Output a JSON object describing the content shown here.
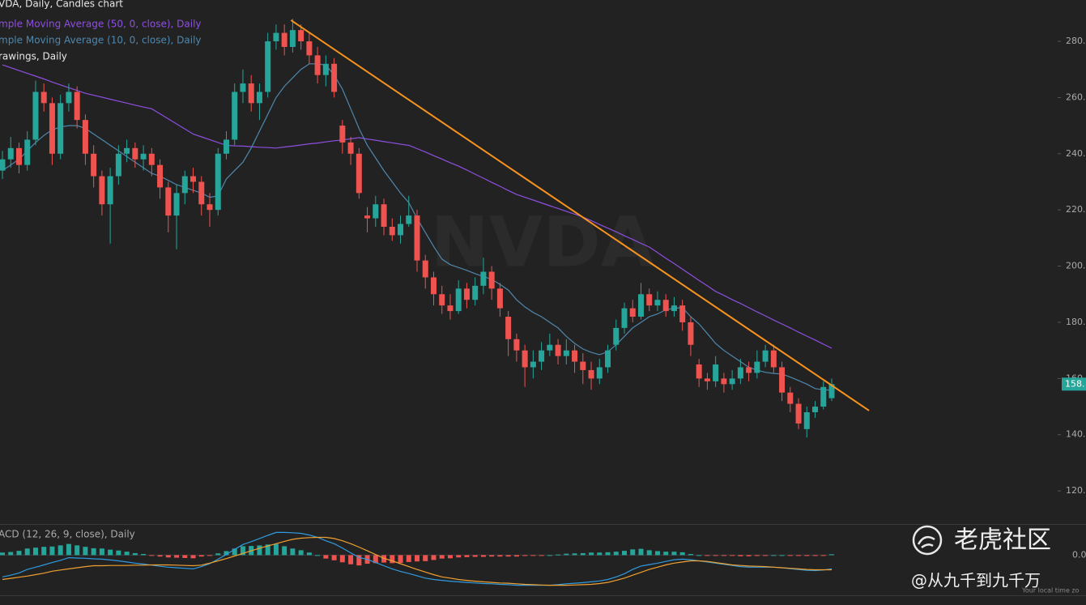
{
  "chart_data": [
    {
      "type": "candlestick",
      "title": "VDA, Daily, Candles chart",
      "watermark": "NVDA",
      "open": [
        234,
        238,
        242,
        236,
        245,
        262,
        258,
        240,
        258,
        262,
        252,
        240,
        232,
        222,
        232,
        240,
        242,
        238,
        240,
        236,
        228,
        218,
        226,
        232,
        230,
        222,
        220,
        240,
        245,
        262,
        265,
        258,
        262,
        280,
        283,
        278,
        284,
        280,
        275,
        268,
        272,
        250,
        244,
        240,
        218,
        217,
        222,
        214,
        211,
        215,
        218,
        202,
        196,
        190,
        186,
        184,
        192,
        188,
        193,
        198,
        192,
        182,
        174,
        170,
        164,
        166,
        170,
        172,
        168,
        170,
        166,
        163,
        160,
        164,
        172,
        178,
        185,
        182,
        190,
        186,
        188,
        184,
        186,
        180,
        165,
        160,
        159,
        160,
        158,
        160,
        164,
        162,
        166,
        170,
        164,
        155,
        151,
        142,
        148,
        150,
        153
      ],
      "high": [
        241,
        246,
        244,
        248,
        266,
        265,
        260,
        261,
        265,
        264,
        254,
        243,
        234,
        235,
        243,
        245,
        244,
        243,
        242,
        238,
        230,
        229,
        234,
        235,
        232,
        226,
        242,
        248,
        265,
        270,
        268,
        265,
        283,
        286,
        286,
        288,
        286,
        283,
        278,
        275,
        274,
        252,
        246,
        242,
        221,
        225,
        224,
        217,
        218,
        225,
        220,
        204,
        198,
        193,
        190,
        195,
        194,
        196,
        203,
        200,
        194,
        184,
        176,
        172,
        170,
        173,
        176,
        174,
        174,
        172,
        169,
        166,
        167,
        172,
        181,
        187,
        188,
        194,
        192,
        191,
        190,
        189,
        188,
        182,
        167,
        162,
        168,
        162,
        163,
        167,
        166,
        170,
        172,
        172,
        166,
        157,
        153,
        150,
        152,
        159,
        160
      ],
      "low": [
        231,
        235,
        233,
        234,
        243,
        255,
        236,
        238,
        255,
        249,
        236,
        228,
        218,
        208,
        229,
        237,
        235,
        234,
        232,
        224,
        212,
        206,
        222,
        226,
        218,
        214,
        218,
        238,
        243,
        258,
        255,
        252,
        260,
        277,
        275,
        276,
        277,
        272,
        265,
        264,
        260,
        240,
        236,
        224,
        212,
        214,
        211,
        209,
        208,
        214,
        198,
        192,
        186,
        183,
        181,
        183,
        185,
        186,
        190,
        188,
        182,
        168,
        166,
        157,
        160,
        163,
        168,
        165,
        165,
        162,
        158,
        156,
        158,
        162,
        170,
        176,
        180,
        181,
        184,
        184,
        182,
        182,
        177,
        168,
        157,
        156,
        157,
        155,
        156,
        158,
        159,
        160,
        164,
        162,
        152,
        148,
        142,
        139,
        146,
        149,
        152
      ],
      "close": [
        238,
        242,
        236,
        245,
        262,
        258,
        240,
        258,
        262,
        252,
        240,
        232,
        222,
        232,
        240,
        242,
        238,
        240,
        236,
        228,
        218,
        226,
        232,
        230,
        222,
        220,
        240,
        245,
        262,
        265,
        258,
        262,
        280,
        283,
        278,
        284,
        280,
        275,
        268,
        272,
        262,
        244,
        240,
        226,
        217,
        222,
        214,
        211,
        215,
        218,
        202,
        196,
        190,
        186,
        184,
        192,
        188,
        193,
        198,
        192,
        185,
        174,
        170,
        164,
        166,
        170,
        172,
        168,
        170,
        166,
        163,
        160,
        164,
        170,
        178,
        185,
        182,
        190,
        186,
        188,
        184,
        186,
        180,
        172,
        160,
        159,
        165,
        158,
        160,
        164,
        162,
        166,
        170,
        164,
        155,
        151,
        144,
        148,
        150,
        157,
        158
      ],
      "up_color": "#26a69a",
      "down_color": "#ef5350",
      "overlays": [
        {
          "name": "mple Moving Average (50, 0, close), Daily",
          "color": "#8e4fe0",
          "values": [
            271.6,
            270.6,
            269.6,
            268.6,
            267.6,
            266.6,
            265.5,
            264.5,
            263.5,
            262.5,
            261.5,
            260.8,
            260.1,
            259.4,
            258.7,
            258.0,
            257.3,
            256.6,
            256.0,
            254.2,
            252.4,
            250.6,
            248.8,
            247.0,
            246.0,
            245.0,
            244.0,
            243.0,
            242.8,
            242.7,
            242.5,
            242.3,
            242.2,
            242.0,
            242.4,
            242.7,
            243.1,
            243.5,
            243.8,
            244.2,
            244.6,
            244.9,
            245.3,
            245.7,
            245.2,
            244.8,
            244.3,
            243.9,
            243.4,
            243.0,
            241.8,
            240.6,
            239.3,
            238.1,
            236.8,
            235.6,
            234.2,
            232.7,
            231.3,
            229.8,
            228.4,
            226.9,
            225.5,
            224.5,
            223.5,
            222.5,
            221.5,
            220.5,
            219.5,
            218.5,
            217.5,
            216.2,
            214.8,
            213.5,
            212.2,
            210.8,
            209.5,
            208.1,
            206.8,
            204.8,
            202.8,
            200.9,
            198.9,
            196.9,
            194.9,
            193.0,
            191.0,
            189.6,
            188.1,
            186.7,
            185.2,
            183.7,
            182.3,
            180.8,
            179.4,
            178.0,
            176.5,
            175.1,
            173.7,
            172.2,
            170.8
          ]
        },
        {
          "name": "mple Moving Average (10, 0, close), Daily",
          "color": "#4f87ad",
          "values": [
            234,
            236,
            238,
            241,
            244,
            246.5,
            248.5,
            249.5,
            250,
            250,
            249,
            247,
            245,
            243,
            241,
            239,
            237,
            235,
            233,
            232,
            230.5,
            229,
            228,
            227,
            226,
            224.5,
            225,
            231,
            234,
            237,
            242,
            248,
            254,
            260,
            264,
            267,
            270,
            272,
            272,
            271.5,
            268,
            263,
            256,
            249,
            243,
            238.5,
            234,
            230,
            226,
            222.6,
            217,
            212,
            207,
            202.5,
            200.5,
            199.5,
            198.5,
            197.3,
            196.3,
            195.3,
            193.5,
            191.5,
            188,
            185.5,
            183.5,
            182,
            180,
            178,
            175,
            172.5,
            170.5,
            169.3,
            168.5,
            169.5,
            172,
            175,
            178,
            180,
            182,
            183,
            184.5,
            185,
            185.2,
            182,
            179.4,
            176,
            172.5,
            170,
            168,
            166,
            164,
            163,
            162.2,
            161.8,
            161.6,
            160.5,
            159.3,
            158,
            156.4,
            156,
            155.8
          ]
        }
      ],
      "trendline": {
        "name": "rawings, Daily",
        "color": "#f7931e",
        "x": [
          34.8,
          104.5
        ],
        "y": [
          287.5,
          148.6
        ]
      },
      "ylim": [
        108.8,
        294.7
      ],
      "yticks": [
        {
          "value": 120,
          "label": "120."
        },
        {
          "value": 140,
          "label": "140."
        },
        {
          "value": 160,
          "label": "160."
        },
        {
          "value": 180,
          "label": "180."
        },
        {
          "value": 200,
          "label": "200."
        },
        {
          "value": 220,
          "label": "220."
        },
        {
          "value": 240,
          "label": "240."
        },
        {
          "value": 260,
          "label": "260."
        },
        {
          "value": 280,
          "label": "280."
        }
      ],
      "last_price": {
        "value": 158,
        "label": "158."
      }
    },
    {
      "type": "macd",
      "title": "ACD (12, 26, 9, close), Daily",
      "series": [
        {
          "color": "#2f9be0",
          "values": [
            -7.6,
            -7.0,
            -6.2,
            -5.0,
            -4.2,
            -3.4,
            -2.6,
            -1.8,
            -0.9,
            -1.0,
            -1.1,
            -1.3,
            -1.4,
            -1.7,
            -2.0,
            -2.4,
            -2.8,
            -3.1,
            -3.5,
            -3.9,
            -4.2,
            -4.4,
            -4.6,
            -4.8,
            -4.0,
            -3.0,
            -1.4,
            0.2,
            2.0,
            3.7,
            4.7,
            5.8,
            6.9,
            7.9,
            7.9,
            7.8,
            7.6,
            7.0,
            6.2,
            5.0,
            4.0,
            2.5,
            0.8,
            -0.8,
            -1.5,
            -2.6,
            -3.7,
            -4.8,
            -5.7,
            -6.4,
            -7.2,
            -8.0,
            -8.5,
            -8.8,
            -9.1,
            -9.3,
            -9.5,
            -9.7,
            -9.9,
            -10.0,
            -10.2,
            -10.3,
            -10.5,
            -10.5,
            -10.5,
            -10.5,
            -10.5,
            -10.3,
            -10.0,
            -9.8,
            -9.6,
            -9.3,
            -9.0,
            -8.5,
            -7.6,
            -6.5,
            -5.0,
            -3.8,
            -3.3,
            -2.8,
            -2.2,
            -1.6,
            -1.4,
            -1.6,
            -2.0,
            -2.4,
            -2.8,
            -3.2,
            -3.6,
            -4.0,
            -4.2,
            -4.2,
            -4.2,
            -4.2,
            -4.4,
            -4.7,
            -5.0,
            -5.3,
            -5.4,
            -5.2,
            -4.8
          ]
        },
        {
          "color": "#f0a030",
          "values": [
            -8.5,
            -8.1,
            -7.7,
            -7.3,
            -6.8,
            -6.3,
            -5.6,
            -5.2,
            -4.8,
            -4.4,
            -4.0,
            -3.7,
            -3.7,
            -3.6,
            -3.6,
            -3.6,
            -3.5,
            -3.5,
            -3.4,
            -3.4,
            -3.4,
            -3.5,
            -3.6,
            -3.7,
            -3.5,
            -2.8,
            -2.0,
            -1.2,
            -0.3,
            0.6,
            1.5,
            2.4,
            3.2,
            4.0,
            4.8,
            5.5,
            5.9,
            6.1,
            6.2,
            6.2,
            5.8,
            5.0,
            4.0,
            2.8,
            1.5,
            0.2,
            -1.1,
            -2.0,
            -3.0,
            -4.0,
            -5.0,
            -5.9,
            -6.8,
            -7.6,
            -8.0,
            -8.5,
            -8.8,
            -9.1,
            -9.3,
            -9.5,
            -9.7,
            -9.8,
            -10.0,
            -10.2,
            -10.3,
            -10.4,
            -10.5,
            -10.5,
            -10.5,
            -10.4,
            -10.3,
            -10.2,
            -9.9,
            -9.5,
            -8.8,
            -8.0,
            -7.0,
            -6.0,
            -5.0,
            -4.2,
            -3.4,
            -2.8,
            -2.4,
            -2.0,
            -2.0,
            -2.2,
            -2.6,
            -3.0,
            -3.4,
            -3.6,
            -3.8,
            -3.9,
            -4.0,
            -4.2,
            -4.4,
            -4.6,
            -4.8,
            -5.0,
            -5.1,
            -5.1,
            -5.1
          ]
        }
      ],
      "histogram": {
        "up_color": "#26a69a",
        "down_color": "#ef5350",
        "values": [
          0.9,
          1.1,
          1.5,
          2.3,
          2.6,
          2.9,
          3.0,
          3.4,
          3.9,
          3.4,
          2.9,
          2.4,
          2.3,
          1.9,
          1.6,
          1.2,
          0.7,
          0.4,
          -0.1,
          -0.5,
          -0.8,
          -0.9,
          -1.0,
          -1.1,
          -0.5,
          -0.2,
          0.6,
          1.4,
          2.3,
          3.1,
          3.2,
          3.4,
          3.7,
          3.9,
          3.1,
          2.3,
          1.7,
          0.9,
          0.0,
          -1.2,
          -1.8,
          -2.5,
          -3.2,
          -3.6,
          -3.0,
          -2.8,
          -2.6,
          -2.8,
          -2.7,
          -2.4,
          -2.2,
          -2.1,
          -1.7,
          -1.2,
          -1.1,
          -0.8,
          -0.7,
          -0.6,
          -0.6,
          -0.5,
          -0.5,
          -0.5,
          -0.5,
          -0.3,
          -0.2,
          -0.1,
          0.0,
          0.2,
          0.5,
          0.6,
          0.7,
          0.9,
          0.9,
          1.0,
          1.2,
          1.5,
          2.0,
          2.2,
          1.7,
          1.4,
          1.2,
          1.2,
          1.0,
          0.4,
          0.0,
          -0.2,
          -0.2,
          -0.2,
          -0.2,
          -0.4,
          -0.4,
          -0.3,
          -0.2,
          0.0,
          0.0,
          -0.1,
          -0.2,
          -0.3,
          -0.3,
          -0.1,
          0.3
        ]
      },
      "ylim": [
        -14,
        10
      ],
      "yticks": [
        {
          "value": 0,
          "label": "0.0"
        }
      ]
    }
  ],
  "overlay_texts": {
    "brand": "老虎社区",
    "author": "@从九千到九千万",
    "timezone": "Your local time zo"
  }
}
